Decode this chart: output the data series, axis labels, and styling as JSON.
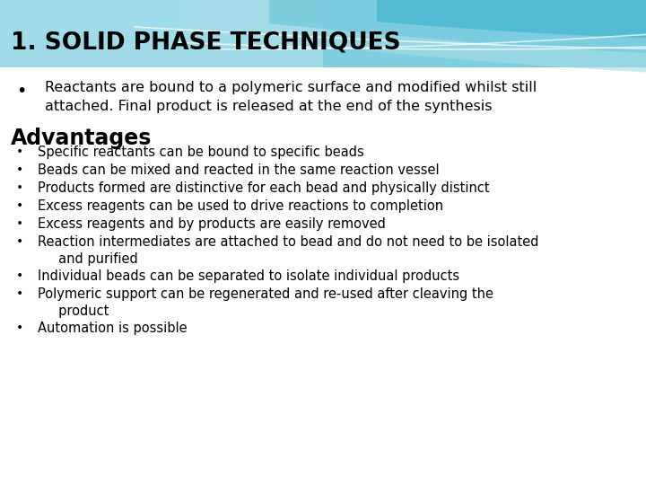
{
  "title": "1. SOLID PHASE TECHNIQUES",
  "bg_color": "#ffffff",
  "title_color": "#000000",
  "title_fontsize": 19,
  "intro_bullet": "Reactants are bound to a polymeric surface and modified whilst still\nattached. Final product is released at the end of the synthesis",
  "advantages_title": "Advantages",
  "advantages_fontsize": 17,
  "bullet_fontsize": 10.5,
  "advantages_bullets": [
    "Specific reactants can be bound to specific beads",
    "Beads can be mixed and reacted in the same reaction vessel",
    "Products formed are distinctive for each bead and physically distinct",
    "Excess reagents can be used to drive reactions to completion",
    "Excess reagents and by products are easily removed",
    "Reaction intermediates are attached to bead and do not need to be isolated\n     and purified",
    "Individual beads can be separated to isolate individual products",
    "Polymeric support can be regenerated and re-used after cleaving the\n     product",
    "Automation is possible"
  ],
  "wave_light": "#a8dce8",
  "wave_mid": "#6ec8dc",
  "wave_dark": "#4ab8d0",
  "header_bg": "#7ecfe0",
  "header_bg_light": "#c0e8f0"
}
